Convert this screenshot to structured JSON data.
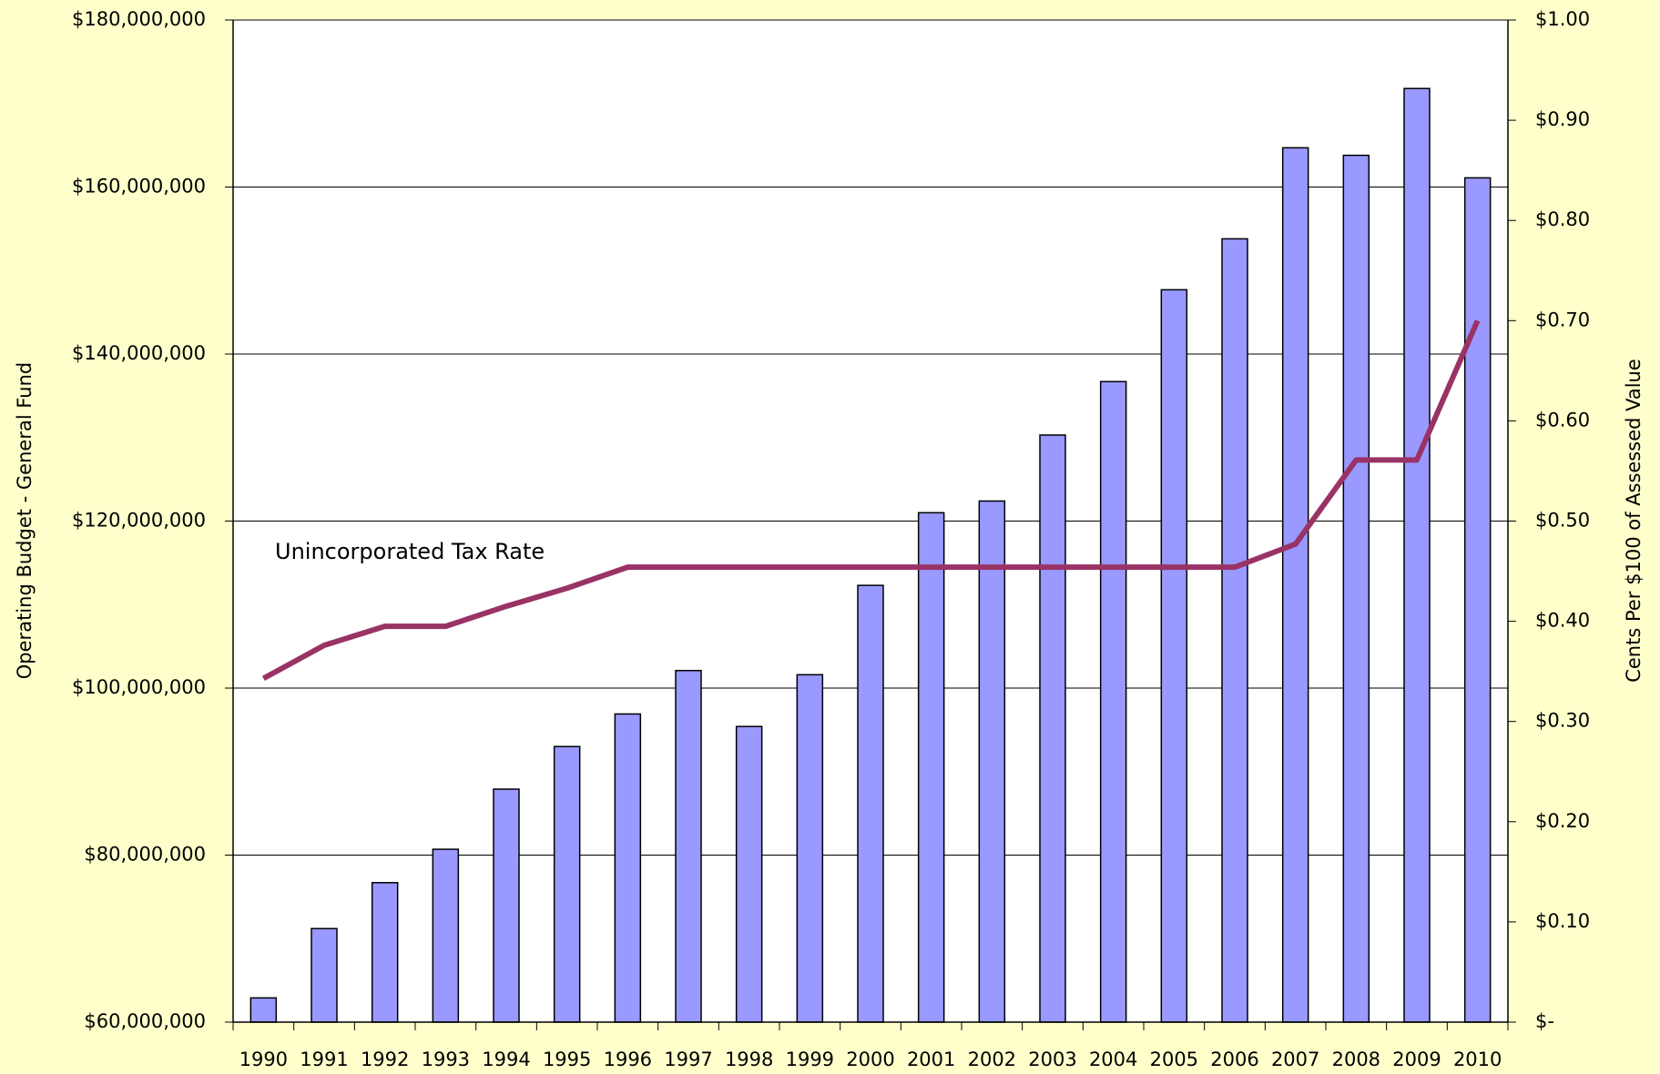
{
  "chart_data": {
    "type": "bar",
    "ylabel": "Operating Budget - General Fund",
    "y2label": "Cents Per $100 of Assessed Value",
    "categories": [
      "1990",
      "1991",
      "1992",
      "1993",
      "1994",
      "1995",
      "1996",
      "1997",
      "1998",
      "1999",
      "2000",
      "2001",
      "2002",
      "2003",
      "2004",
      "2005",
      "2006",
      "2007",
      "2008",
      "2009",
      "2010"
    ],
    "series": [
      {
        "type": "bar",
        "color": "#9999ff",
        "values": [
          62900000,
          71200000,
          76700000,
          80700000,
          87900000,
          93000000,
          96900000,
          102100000,
          95400000,
          101600000,
          112300000,
          121000000,
          122400000,
          130300000,
          136700000,
          147700000,
          153800000,
          164700000,
          163800000,
          171800000,
          161100000
        ]
      },
      {
        "type": "line",
        "name": "Unincorporated Tax Rate",
        "color": "#993366",
        "axis": "y2",
        "values": [
          0.343,
          0.376,
          0.395,
          0.395,
          0.415,
          0.433,
          0.454,
          0.454,
          0.454,
          0.454,
          0.454,
          0.454,
          0.454,
          0.454,
          0.454,
          0.454,
          0.454,
          0.477,
          0.561,
          0.561,
          0.7
        ]
      }
    ],
    "ylim": [
      60000000,
      180000000
    ],
    "yticks": [
      {
        "value": 60000000,
        "label": "$60,000,000"
      },
      {
        "value": 80000000,
        "label": "$80,000,000"
      },
      {
        "value": 100000000,
        "label": "$100,000,000"
      },
      {
        "value": 120000000,
        "label": "$120,000,000"
      },
      {
        "value": 140000000,
        "label": "$140,000,000"
      },
      {
        "value": 160000000,
        "label": "$160,000,000"
      },
      {
        "value": 180000000,
        "label": "$180,000,000"
      }
    ],
    "y2lim": [
      0,
      1
    ],
    "y2ticks": [
      {
        "value": 0,
        "label": "$-"
      },
      {
        "value": 0.1,
        "label": "$0.10"
      },
      {
        "value": 0.2,
        "label": "$0.20"
      },
      {
        "value": 0.3,
        "label": "$0.30"
      },
      {
        "value": 0.4,
        "label": "$0.40"
      },
      {
        "value": 0.5,
        "label": "$0.50"
      },
      {
        "value": 0.6,
        "label": "$0.60"
      },
      {
        "value": 0.7,
        "label": "$0.70"
      },
      {
        "value": 0.8,
        "label": "$0.80"
      },
      {
        "value": 0.9,
        "label": "$0.90"
      },
      {
        "value": 1,
        "label": "$1.00"
      }
    ],
    "grid": true
  }
}
